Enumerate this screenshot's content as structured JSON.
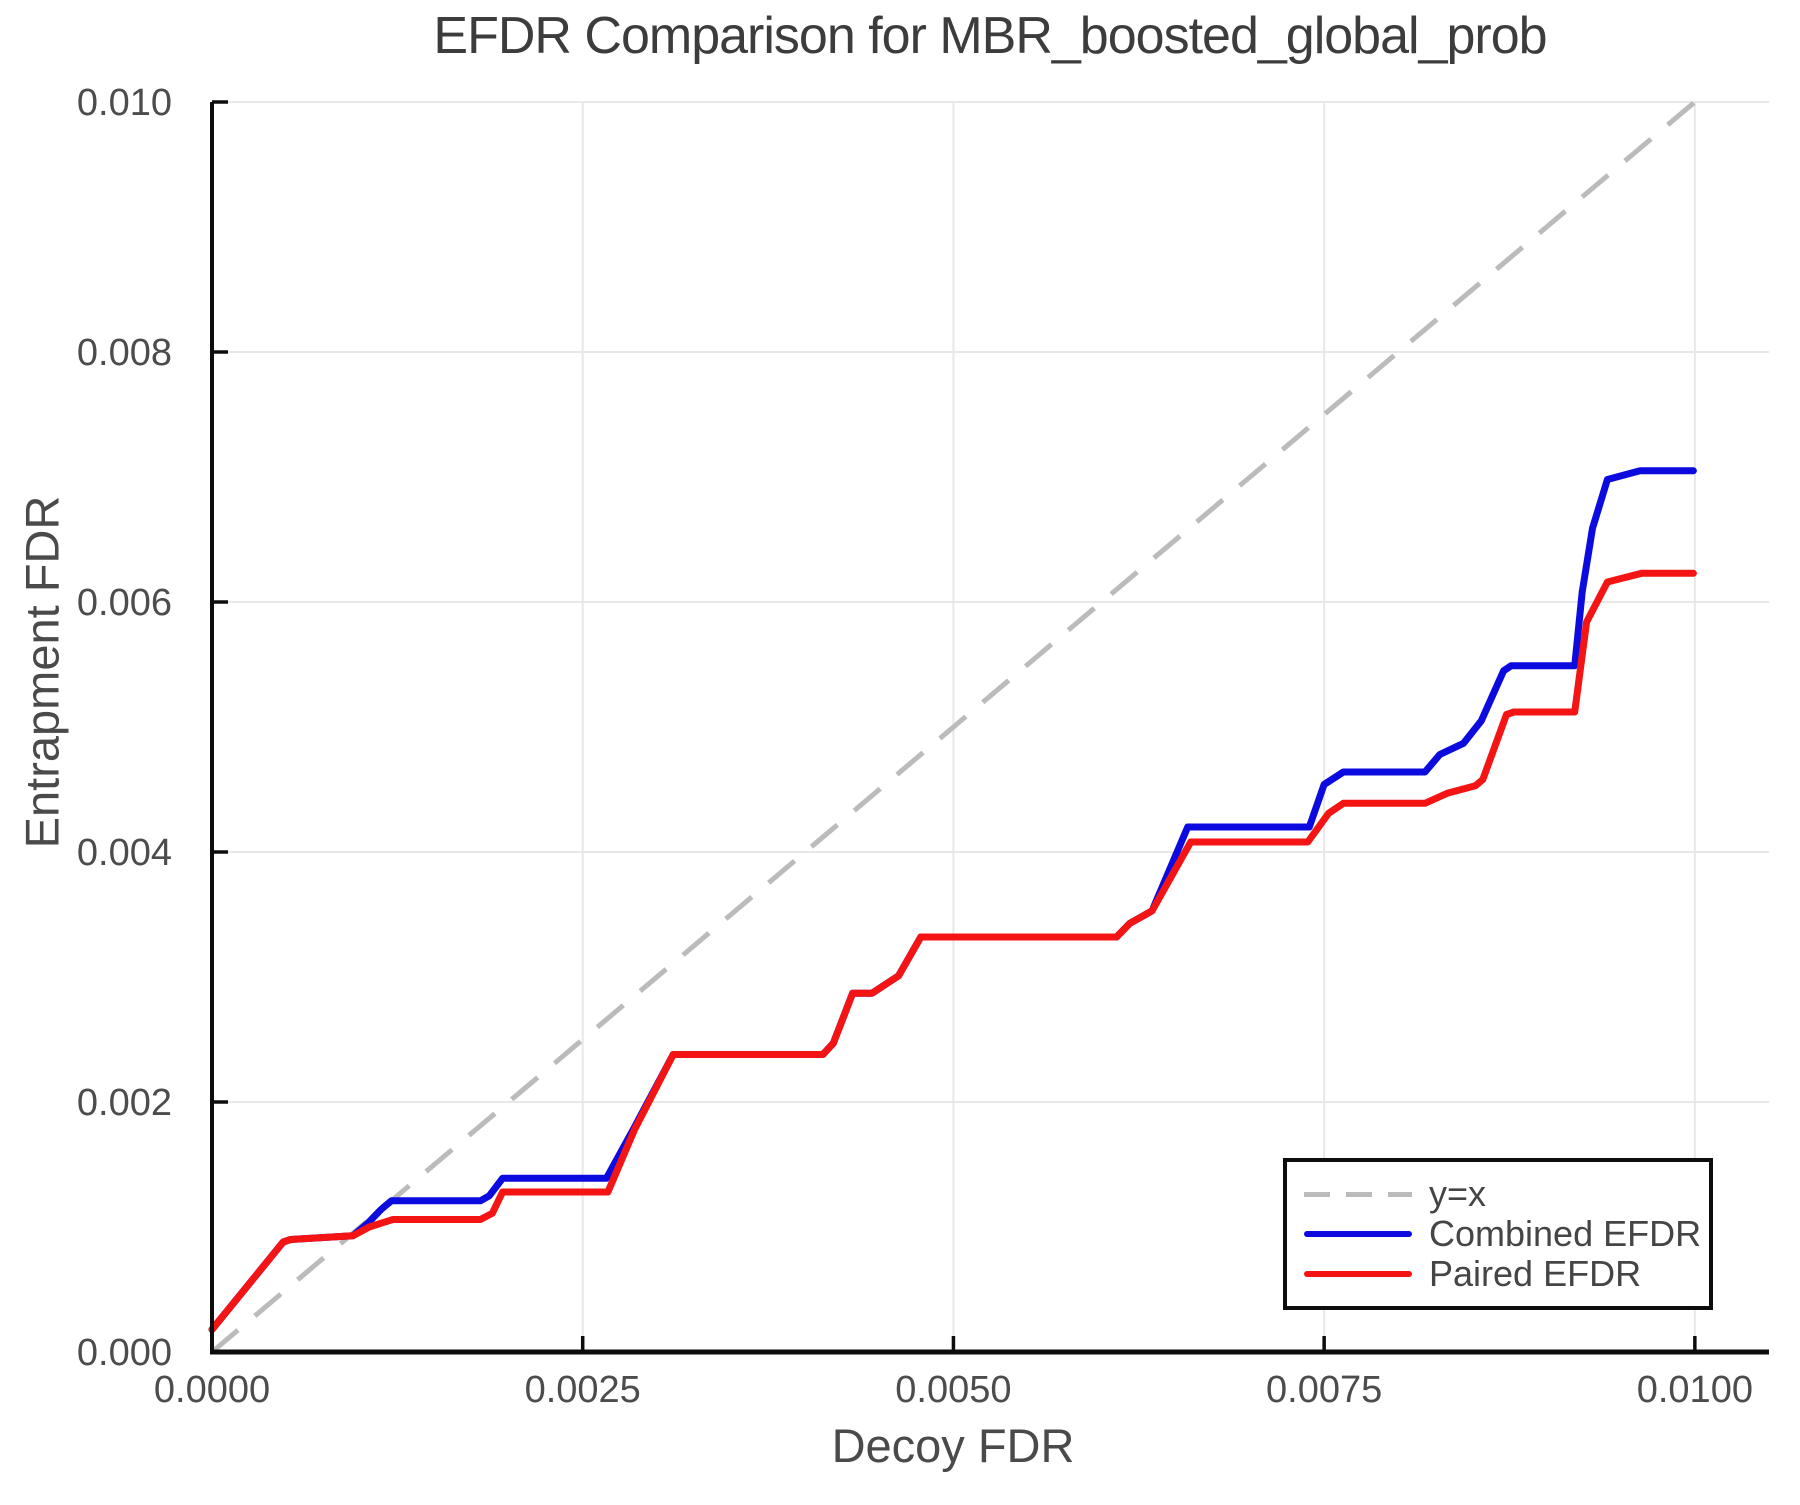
{
  "title": "EFDR Comparison for MBR_boosted_global_prob",
  "chart_data": {
    "type": "line",
    "title": "EFDR Comparison for MBR_boosted_global_prob",
    "xlabel": "Decoy FDR",
    "ylabel": "Entrapment FDR",
    "xlim": [
      0,
      0.0105
    ],
    "ylim": [
      0,
      0.01
    ],
    "grid": true,
    "grid_color": "#e8e8e8",
    "axis_color": "#0d0d0d",
    "tick_text_color": "#4c4c4c",
    "x_ticks": {
      "values": [
        0,
        0.0025,
        0.005,
        0.0075,
        0.01
      ],
      "labels": [
        "0.0000",
        "0.0025",
        "0.0050",
        "0.0075",
        "0.0100"
      ]
    },
    "y_ticks": {
      "values": [
        0,
        0.002,
        0.004,
        0.006,
        0.008,
        0.01
      ],
      "labels": [
        "0.000",
        "0.002",
        "0.004",
        "0.006",
        "0.008",
        "0.010"
      ]
    },
    "reference_line": {
      "label": "y=x",
      "color": "#bbbbbb",
      "dashed": true,
      "points": [
        [
          0,
          0
        ],
        [
          0.01,
          0.01
        ]
      ]
    },
    "series": [
      {
        "name": "Combined EFDR",
        "color": "#0b0be0",
        "points": [
          [
            0.0,
            0.00018
          ],
          [
            0.00048,
            0.00088
          ],
          [
            0.00053,
            0.0009
          ],
          [
            0.00095,
            0.00093
          ],
          [
            0.00105,
            0.00103
          ],
          [
            0.00114,
            0.00114
          ],
          [
            0.00121,
            0.00121
          ],
          [
            0.00181,
            0.00121
          ],
          [
            0.00187,
            0.00125
          ],
          [
            0.00196,
            0.00139
          ],
          [
            0.00266,
            0.00139
          ],
          [
            0.00285,
            0.0018
          ],
          [
            0.00311,
            0.00238
          ],
          [
            0.00412,
            0.00238
          ],
          [
            0.00419,
            0.00247
          ],
          [
            0.00432,
            0.00287
          ],
          [
            0.00445,
            0.00287
          ],
          [
            0.00463,
            0.00301
          ],
          [
            0.00478,
            0.00332
          ],
          [
            0.0061,
            0.00332
          ],
          [
            0.00619,
            0.00343
          ],
          [
            0.00634,
            0.00353
          ],
          [
            0.00658,
            0.0042
          ],
          [
            0.0074,
            0.0042
          ],
          [
            0.0075,
            0.00454
          ],
          [
            0.00763,
            0.00464
          ],
          [
            0.00818,
            0.00464
          ],
          [
            0.00828,
            0.00478
          ],
          [
            0.00844,
            0.00487
          ],
          [
            0.00856,
            0.00505
          ],
          [
            0.00871,
            0.00545
          ],
          [
            0.00876,
            0.00549
          ],
          [
            0.00919,
            0.00549
          ],
          [
            0.00924,
            0.00608
          ],
          [
            0.00931,
            0.00659
          ],
          [
            0.00941,
            0.00698
          ],
          [
            0.00963,
            0.00705
          ],
          [
            0.00999,
            0.00705
          ]
        ]
      },
      {
        "name": "Paired EFDR",
        "color": "#f51414",
        "points": [
          [
            0.0,
            0.00018
          ],
          [
            0.00048,
            0.00088
          ],
          [
            0.00053,
            0.0009
          ],
          [
            0.00095,
            0.00093
          ],
          [
            0.00106,
            0.001
          ],
          [
            0.00122,
            0.00106
          ],
          [
            0.00181,
            0.00106
          ],
          [
            0.00189,
            0.00111
          ],
          [
            0.00196,
            0.00128
          ],
          [
            0.00267,
            0.00128
          ],
          [
            0.00285,
            0.00178
          ],
          [
            0.00311,
            0.00238
          ],
          [
            0.00412,
            0.00238
          ],
          [
            0.00419,
            0.00247
          ],
          [
            0.00432,
            0.00287
          ],
          [
            0.00445,
            0.00287
          ],
          [
            0.00463,
            0.00301
          ],
          [
            0.00478,
            0.00332
          ],
          [
            0.0061,
            0.00332
          ],
          [
            0.00619,
            0.00343
          ],
          [
            0.00634,
            0.00353
          ],
          [
            0.0066,
            0.00408
          ],
          [
            0.00739,
            0.00408
          ],
          [
            0.00753,
            0.00431
          ],
          [
            0.00763,
            0.00439
          ],
          [
            0.00818,
            0.00439
          ],
          [
            0.00833,
            0.00447
          ],
          [
            0.00852,
            0.00453
          ],
          [
            0.00857,
            0.00458
          ],
          [
            0.00873,
            0.0051
          ],
          [
            0.00878,
            0.00512
          ],
          [
            0.00919,
            0.00512
          ],
          [
            0.00927,
            0.00584
          ],
          [
            0.00941,
            0.00616
          ],
          [
            0.00964,
            0.00623
          ],
          [
            0.00999,
            0.00623
          ]
        ]
      }
    ],
    "legend": {
      "position": "bottom-right",
      "items": [
        {
          "label": "y=x",
          "color": "#bbbbbb",
          "dashed": true
        },
        {
          "label": "Combined EFDR",
          "color": "#0b0be0",
          "dashed": false
        },
        {
          "label": "Paired EFDR",
          "color": "#f51414",
          "dashed": false
        }
      ]
    }
  }
}
